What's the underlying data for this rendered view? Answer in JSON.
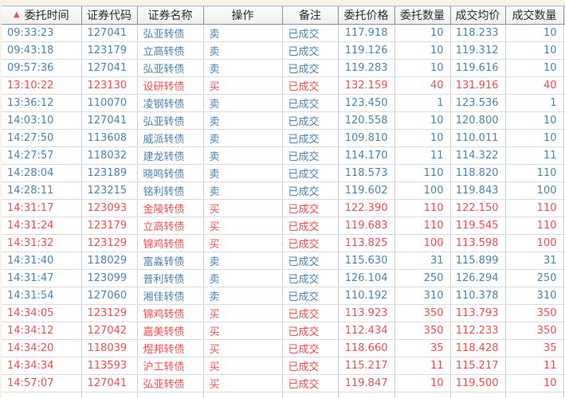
{
  "colors": {
    "buy_text": "#F24E4E",
    "sell_text": "#4E82B4",
    "sort_indicator": "#E9504E",
    "top_strip": "#F7F2E3",
    "header_border": "#8F8F8F"
  },
  "table": {
    "sort_icon": "▲",
    "columns": [
      {
        "key": "time",
        "label": "委托时间"
      },
      {
        "key": "code",
        "label": "证券代码"
      },
      {
        "key": "name",
        "label": "证券名称"
      },
      {
        "key": "op",
        "label": "操作"
      },
      {
        "key": "remark",
        "label": "备注"
      },
      {
        "key": "order_price",
        "label": "委托价格"
      },
      {
        "key": "order_qty",
        "label": "委托数量"
      },
      {
        "key": "avg_price",
        "label": "成交均价"
      },
      {
        "key": "fill_qty",
        "label": "成交数量"
      }
    ],
    "rows": [
      {
        "time": "09:33:23",
        "code": "127041",
        "name": "弘亚转债",
        "op": "卖",
        "remark": "已成交",
        "order_price": "117.918",
        "order_qty": "10",
        "avg_price": "118.233",
        "fill_qty": "10",
        "side": "sell"
      },
      {
        "time": "09:43:18",
        "code": "123179",
        "name": "立高转债",
        "op": "卖",
        "remark": "已成交",
        "order_price": "119.126",
        "order_qty": "10",
        "avg_price": "119.312",
        "fill_qty": "10",
        "side": "sell"
      },
      {
        "time": "09:57:36",
        "code": "127041",
        "name": "弘亚转债",
        "op": "卖",
        "remark": "已成交",
        "order_price": "119.283",
        "order_qty": "10",
        "avg_price": "119.616",
        "fill_qty": "10",
        "side": "sell"
      },
      {
        "time": "13:10:22",
        "code": "123130",
        "name": "设研转债",
        "op": "买",
        "remark": "已成交",
        "order_price": "132.159",
        "order_qty": "40",
        "avg_price": "131.916",
        "fill_qty": "40",
        "side": "buy"
      },
      {
        "time": "13:36:12",
        "code": "110070",
        "name": "凌钢转债",
        "op": "卖",
        "remark": "已成交",
        "order_price": "123.450",
        "order_qty": "1",
        "avg_price": "123.536",
        "fill_qty": "1",
        "side": "sell"
      },
      {
        "time": "14:03:10",
        "code": "127041",
        "name": "弘亚转债",
        "op": "卖",
        "remark": "已成交",
        "order_price": "120.558",
        "order_qty": "10",
        "avg_price": "120.800",
        "fill_qty": "10",
        "side": "sell"
      },
      {
        "time": "14:27:50",
        "code": "113608",
        "name": "威派转债",
        "op": "卖",
        "remark": "已成交",
        "order_price": "109.810",
        "order_qty": "10",
        "avg_price": "110.011",
        "fill_qty": "10",
        "side": "sell"
      },
      {
        "time": "14:27:57",
        "code": "118032",
        "name": "建龙转债",
        "op": "卖",
        "remark": "已成交",
        "order_price": "114.170",
        "order_qty": "11",
        "avg_price": "114.322",
        "fill_qty": "11",
        "side": "sell"
      },
      {
        "time": "14:28:04",
        "code": "123189",
        "name": "晓鸣转债",
        "op": "卖",
        "remark": "已成交",
        "order_price": "118.573",
        "order_qty": "110",
        "avg_price": "118.820",
        "fill_qty": "110",
        "side": "sell"
      },
      {
        "time": "14:28:11",
        "code": "123215",
        "name": "铭利转债",
        "op": "卖",
        "remark": "已成交",
        "order_price": "119.602",
        "order_qty": "100",
        "avg_price": "119.843",
        "fill_qty": "100",
        "side": "sell"
      },
      {
        "time": "14:31:17",
        "code": "123093",
        "name": "金陵转债",
        "op": "买",
        "remark": "已成交",
        "order_price": "122.390",
        "order_qty": "110",
        "avg_price": "122.150",
        "fill_qty": "110",
        "side": "buy"
      },
      {
        "time": "14:31:24",
        "code": "123179",
        "name": "立高转债",
        "op": "买",
        "remark": "已成交",
        "order_price": "119.683",
        "order_qty": "110",
        "avg_price": "119.545",
        "fill_qty": "110",
        "side": "buy"
      },
      {
        "time": "14:31:32",
        "code": "123129",
        "name": "锦鸡转债",
        "op": "买",
        "remark": "已成交",
        "order_price": "113.825",
        "order_qty": "100",
        "avg_price": "113.598",
        "fill_qty": "100",
        "side": "buy"
      },
      {
        "time": "14:31:40",
        "code": "118029",
        "name": "富淼转债",
        "op": "卖",
        "remark": "已成交",
        "order_price": "115.630",
        "order_qty": "31",
        "avg_price": "115.899",
        "fill_qty": "31",
        "side": "sell"
      },
      {
        "time": "14:31:47",
        "code": "123099",
        "name": "普利转债",
        "op": "卖",
        "remark": "已成交",
        "order_price": "126.104",
        "order_qty": "250",
        "avg_price": "126.294",
        "fill_qty": "250",
        "side": "sell"
      },
      {
        "time": "14:31:54",
        "code": "127060",
        "name": "湘佳转债",
        "op": "卖",
        "remark": "已成交",
        "order_price": "110.192",
        "order_qty": "310",
        "avg_price": "110.378",
        "fill_qty": "310",
        "side": "sell"
      },
      {
        "time": "14:34:05",
        "code": "123129",
        "name": "锦鸡转债",
        "op": "买",
        "remark": "已成交",
        "order_price": "113.923",
        "order_qty": "350",
        "avg_price": "113.793",
        "fill_qty": "350",
        "side": "buy"
      },
      {
        "time": "14:34:12",
        "code": "127042",
        "name": "嘉美转债",
        "op": "买",
        "remark": "已成交",
        "order_price": "112.434",
        "order_qty": "350",
        "avg_price": "112.233",
        "fill_qty": "350",
        "side": "buy"
      },
      {
        "time": "14:34:20",
        "code": "118039",
        "name": "煜邦转债",
        "op": "买",
        "remark": "已成交",
        "order_price": "118.660",
        "order_qty": "35",
        "avg_price": "118.428",
        "fill_qty": "35",
        "side": "buy"
      },
      {
        "time": "14:34:34",
        "code": "113593",
        "name": "沪工转债",
        "op": "买",
        "remark": "已成交",
        "order_price": "115.217",
        "order_qty": "11",
        "avg_price": "115.217",
        "fill_qty": "11",
        "side": "buy"
      },
      {
        "time": "14:57:07",
        "code": "127041",
        "name": "弘亚转债",
        "op": "买",
        "remark": "已成交",
        "order_price": "119.847",
        "order_qty": "10",
        "avg_price": "119.500",
        "fill_qty": "10",
        "side": "buy"
      }
    ]
  }
}
